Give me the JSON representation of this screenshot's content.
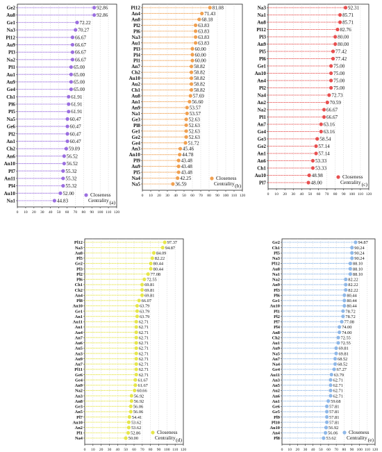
{
  "chart_data": [
    {
      "type": "lollipop",
      "panel_label": "(a)",
      "legend": "Closeness Centrality",
      "color": "#9b6fe0",
      "xticks": [
        0,
        10,
        20,
        30,
        40,
        50,
        60,
        70,
        80,
        90,
        100,
        110,
        120
      ],
      "xlim": [
        0,
        120
      ],
      "categories": [
        "Ge2",
        "Au8",
        "Ge1",
        "Na3",
        "Pl12",
        "Au9",
        "Pl3",
        "Na2",
        "Pl1",
        "Au1",
        "Au9",
        "Ge4",
        "Ch1",
        "Pl6",
        "Pl5",
        "Na5",
        "Ge6",
        "Pl2",
        "An1",
        "Ch2",
        "An6",
        "An10",
        "Pl7",
        "An11",
        "Pl4",
        "Au10",
        "Na1"
      ],
      "values": [
        92.86,
        92.86,
        72.22,
        70.27,
        66.67,
        66.67,
        66.67,
        66.67,
        65.0,
        65.0,
        65.0,
        65.0,
        61.91,
        61.91,
        61.91,
        60.47,
        60.47,
        60.47,
        60.47,
        59.09,
        56.52,
        56.52,
        55.32,
        55.32,
        55.32,
        52.0,
        44.83
      ],
      "labels": [
        "92.86",
        "92.86",
        "72.22",
        "70.27",
        "66.67",
        "66.67",
        "66.67",
        "66.67",
        "65.00",
        "65.00",
        "65.00",
        "65.00",
        "61.91",
        "61.91",
        "61.91",
        "60.47",
        "60.47",
        "60.47",
        "60.47",
        "59.09",
        "56.52",
        "56.52",
        "55.32",
        "55.32",
        "55.32",
        "52.00",
        "44.83"
      ]
    },
    {
      "type": "lollipop",
      "panel_label": "(b)",
      "legend": "Closeness Centrality",
      "color": "#f0a050",
      "xticks": [
        0,
        10,
        20,
        30,
        40,
        50,
        60,
        70,
        80,
        90,
        100,
        110,
        120
      ],
      "xlim": [
        0,
        120
      ],
      "categories": [
        "Pl12",
        "An4",
        "An8",
        "Pl2",
        "Pl6",
        "Na3",
        "Au1",
        "Pl3",
        "Pl4",
        "Pl1",
        "An7",
        "Ch2",
        "Au10",
        "Au2",
        "Ch1",
        "Au8",
        "An1",
        "An9",
        "Na1",
        "Ge3",
        "Pl8",
        "Ge1",
        "Ge2",
        "Ge4",
        "An3",
        "An10",
        "Pl9",
        "Au9",
        "Pl5",
        "Na4",
        "Na5"
      ],
      "values": [
        81.08,
        71.43,
        68.18,
        63.83,
        63.83,
        63.83,
        63.83,
        60.0,
        60.0,
        60.0,
        58.82,
        58.82,
        58.82,
        58.82,
        58.82,
        57.69,
        56.6,
        53.57,
        53.57,
        52.63,
        52.63,
        52.63,
        52.63,
        51.72,
        45.46,
        44.78,
        43.48,
        43.48,
        43.48,
        42.25,
        36.59
      ],
      "labels": [
        "81.08",
        "71.43",
        "68.18",
        "63.83",
        "63.83",
        "63.83",
        "63.83",
        "60.00",
        "60.00",
        "60.00",
        "58.82",
        "58.82",
        "58.82",
        "58.82",
        "58.82",
        "57.69",
        "56.60",
        "53.57",
        "53.57",
        "52.63",
        "52.63",
        "52.63",
        "52.63",
        "51.72",
        "45.46",
        "44.78",
        "43.48",
        "43.48",
        "43.48",
        "42.25",
        "36.59"
      ]
    },
    {
      "type": "lollipop",
      "panel_label": "(c)",
      "legend": "Closeness Centrality",
      "color": "#e85050",
      "xticks": [
        0,
        10,
        20,
        30,
        40,
        50,
        60,
        70,
        80,
        90,
        100,
        110,
        120
      ],
      "xlim": [
        0,
        120
      ],
      "categories": [
        "Na3",
        "Na1",
        "Au8",
        "Pl12",
        "Pl3",
        "An9",
        "Pl5",
        "Pl6",
        "Ge1",
        "An10",
        "An4",
        "Pl2",
        "Na4",
        "An2",
        "Na2",
        "Pl1",
        "An7",
        "Ge4",
        "Ge3",
        "Ge2",
        "An1",
        "An6",
        "Ch1",
        "Au10",
        "Pl7"
      ],
      "values": [
        92.31,
        85.71,
        85.71,
        82.76,
        80.0,
        80.0,
        77.42,
        77.42,
        75.0,
        75.0,
        75.0,
        75.0,
        72.73,
        70.59,
        66.67,
        66.67,
        63.16,
        63.16,
        58.54,
        57.14,
        57.14,
        53.33,
        53.33,
        48.98,
        48.0
      ],
      "labels": [
        "92.31",
        "85.71",
        "85.71",
        "82.76",
        "80.00",
        "80.00",
        "77.42",
        "77.42",
        "75.00",
        "75.00",
        "75.00",
        "75.00",
        "72.73",
        "70.59",
        "66.67",
        "66.67",
        "63.16",
        "63.16",
        "58.54",
        "57.14",
        "57.14",
        "53.33",
        "53.33",
        "48.98",
        "48.00"
      ]
    },
    {
      "type": "lollipop",
      "panel_label": "(d)",
      "legend": "Closeness Centrality",
      "color": "#e6e64a",
      "xticks": [
        0,
        10,
        20,
        30,
        40,
        50,
        60,
        70,
        80,
        90,
        100,
        110,
        120
      ],
      "xlim": [
        0,
        120
      ],
      "categories": [
        "Pl12",
        "Na3",
        "Au8",
        "Pl5",
        "Ge2",
        "Pl3",
        "Pl2",
        "Pl6",
        "Ch1",
        "Ch2",
        "An4",
        "Pl8",
        "Au10",
        "Ge1",
        "An1",
        "Au11",
        "Au1",
        "Au4",
        "An7",
        "Au6",
        "Au5",
        "Au3",
        "Au9",
        "Au7",
        "Pl11",
        "Ge6",
        "Ge4",
        "An9",
        "Na2",
        "An3",
        "An8",
        "Ge3",
        "An5",
        "Pl7",
        "Au10",
        "An2",
        "Pl1",
        "Na4"
      ],
      "values": [
        97.37,
        94.87,
        84.09,
        82.22,
        80.44,
        80.44,
        77.08,
        72.55,
        69.81,
        69.81,
        69.81,
        66.07,
        63.79,
        63.79,
        63.79,
        62.71,
        62.71,
        62.71,
        62.71,
        62.71,
        62.71,
        62.71,
        62.71,
        62.71,
        62.71,
        62.71,
        61.67,
        61.67,
        60.66,
        56.92,
        56.92,
        56.06,
        56.06,
        54.41,
        53.62,
        53.62,
        52.86,
        50.0
      ],
      "labels": [
        "97.37",
        "94.87",
        "84.09",
        "82.22",
        "80.44",
        "80.44",
        "77.08",
        "72.55",
        "69.81",
        "69.81",
        "69.81",
        "66.07",
        "63.79",
        "63.79",
        "63.79",
        "62.71",
        "62.71",
        "62.71",
        "62.71",
        "62.71",
        "62.71",
        "62.71",
        "62.71",
        "62.71",
        "62.71",
        "62.71",
        "61.67",
        "61.67",
        "60.66",
        "56.92",
        "56.92",
        "56.06",
        "56.06",
        "54.41",
        "53.62",
        "53.62",
        "52.86",
        "50.00"
      ]
    },
    {
      "type": "lollipop",
      "panel_label": "(e)",
      "legend": "Closeness Centrality",
      "color": "#8fb8e8",
      "xticks": [
        0,
        10,
        20,
        30,
        40,
        50,
        60,
        70,
        80,
        90,
        100,
        110,
        120
      ],
      "xlim": [
        0,
        120
      ],
      "categories": [
        "Ge2",
        "Ch1",
        "Pl5",
        "Na3",
        "Pl12",
        "Au8",
        "Na1",
        "Na2",
        "An9",
        "Pl3",
        "Pl6",
        "Ge1",
        "Au10",
        "Pl1",
        "Pl2",
        "Pl7",
        "Pl4",
        "An8",
        "Ch2",
        "Au1",
        "Au9",
        "Na5",
        "An7",
        "Na4",
        "Ge4",
        "Au11",
        "An3",
        "An5",
        "Au2",
        "An6",
        "An1",
        "Ge6",
        "Ge5",
        "Pl9",
        "Pl10",
        "Au10",
        "An4",
        "Pl8"
      ],
      "values": [
        94.87,
        90.24,
        90.24,
        90.24,
        88.1,
        88.1,
        88.1,
        82.22,
        82.22,
        82.22,
        80.44,
        80.44,
        80.44,
        78.72,
        78.72,
        77.08,
        74.0,
        74.0,
        72.55,
        72.55,
        69.81,
        69.81,
        68.52,
        68.52,
        67.27,
        63.79,
        62.71,
        62.71,
        62.71,
        62.71,
        59.68,
        57.81,
        57.81,
        57.81,
        57.81,
        56.92,
        56.06,
        53.62
      ],
      "labels": [
        "94.87",
        "90.24",
        "90.24",
        "90.24",
        "88.10",
        "88.10",
        "88.10",
        "82.22",
        "82.22",
        "82.22",
        "80.44",
        "80.44",
        "80.44",
        "78.72",
        "78.72",
        "77.08",
        "74.00",
        "74.00",
        "72.55",
        "72.55",
        "69.81",
        "69.81",
        "68.52",
        "68.52",
        "67.27",
        "63.79",
        "62.71",
        "62.71",
        "62.71",
        "62.71",
        "59.68",
        "57.81",
        "57.81",
        "57.81",
        "57.81",
        "56.92",
        "56.06",
        "53.62"
      ]
    }
  ]
}
